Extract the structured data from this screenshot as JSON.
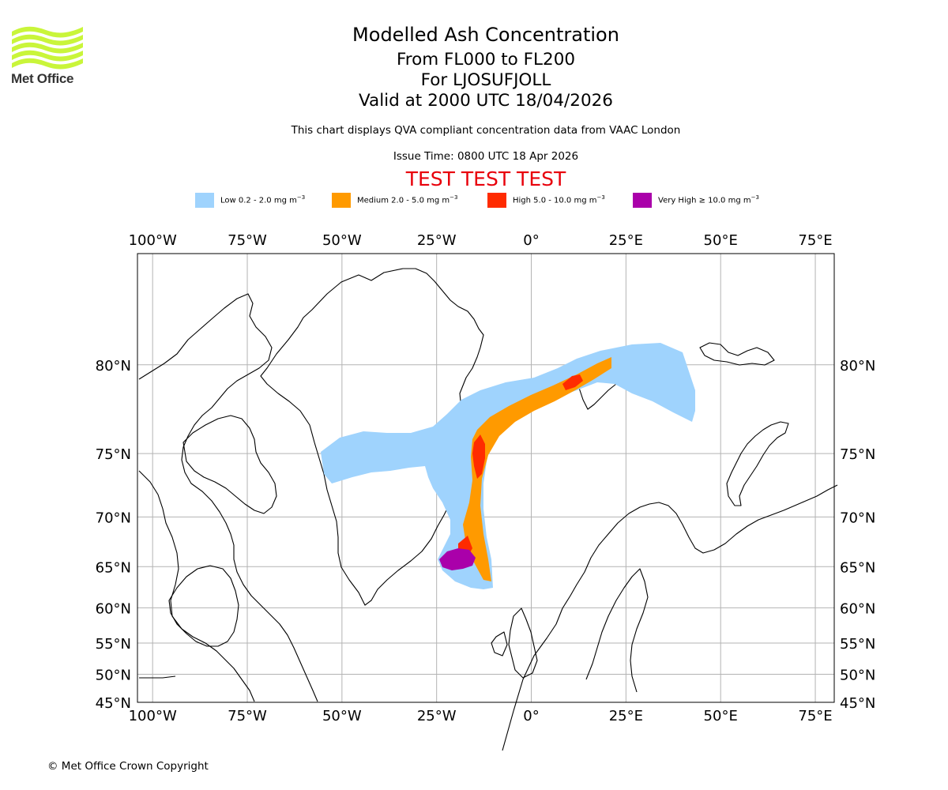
{
  "logo": {
    "text": "Met Office",
    "colors": {
      "waves": "#c9f53a"
    }
  },
  "header": {
    "title": "Modelled Ash Concentration",
    "subtitle_levels": "From FL000 to FL200",
    "subtitle_volcano": "For LJOSUFJOLL",
    "subtitle_valid": "Valid at 2000 UTC 18/04/2026",
    "note": "This chart displays QVA compliant concentration data from VAAC London",
    "issue_time": "Issue Time: 0800 UTC 18 Apr 2026",
    "test_banner": "TEST TEST TEST"
  },
  "legend": [
    {
      "label": "Low 0.2 - 2.0 mg m",
      "unit_exp": "−3",
      "color": "#9fd3fd"
    },
    {
      "label": "Medium 2.0 - 5.0 mg m",
      "unit_exp": "−3",
      "color": "#ff9a00"
    },
    {
      "label": "High 5.0 - 10.0 mg m",
      "unit_exp": "−3",
      "color": "#ff2b00"
    },
    {
      "label": "Very High  ≥  10.0 mg m",
      "unit_exp": "−3",
      "color": "#aa00aa"
    }
  ],
  "map": {
    "lon_range": [
      -104,
      80
    ],
    "lat_range": [
      45,
      84
    ],
    "lon_ticks": [
      -100,
      -75,
      -50,
      -25,
      0,
      25,
      50,
      75
    ],
    "lon_labels": [
      "100°W",
      "75°W",
      "50°W",
      "25°W",
      "0°",
      "25°E",
      "50°E",
      "75°E"
    ],
    "lat_ticks": [
      80,
      75,
      70,
      65,
      60,
      55,
      50,
      45
    ],
    "lat_labels": [
      "80°N",
      "75°N",
      "70°N",
      "65°N",
      "60°N",
      "55°N",
      "50°N",
      "45°N"
    ],
    "grid": true,
    "colors": {
      "grid": "#b3b3b3",
      "coast": "#000000",
      "frame": "#000000"
    }
  },
  "footer": {
    "copyright": "© Met Office Crown Copyright"
  }
}
